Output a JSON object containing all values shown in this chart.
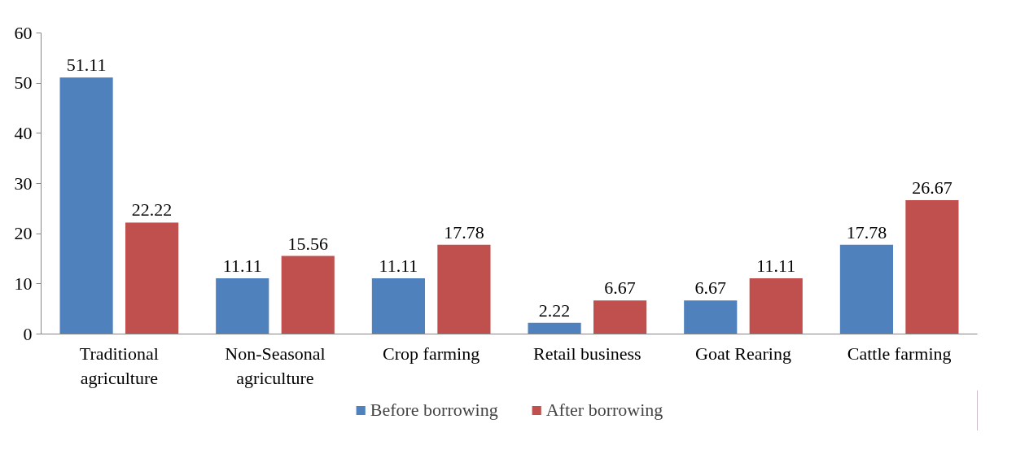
{
  "chart_data": {
    "type": "bar",
    "categories": [
      "Traditional agriculture",
      "Non-Seasonal agriculture",
      "Crop farming",
      "Retail business",
      "Goat Rearing",
      "Cattle farming"
    ],
    "series": [
      {
        "name": "Before borrowing",
        "color": "#4f81bd",
        "values": [
          51.11,
          11.11,
          11.11,
          2.22,
          6.67,
          17.78
        ]
      },
      {
        "name": "After borrowing",
        "color": "#c0504d",
        "values": [
          22.22,
          15.56,
          17.78,
          6.67,
          11.11,
          26.67
        ]
      }
    ],
    "ylim": [
      0,
      60
    ],
    "yticks": [
      0,
      10,
      20,
      30,
      40,
      50,
      60
    ],
    "data_labels": true,
    "legend": "bottom",
    "grid": false
  }
}
